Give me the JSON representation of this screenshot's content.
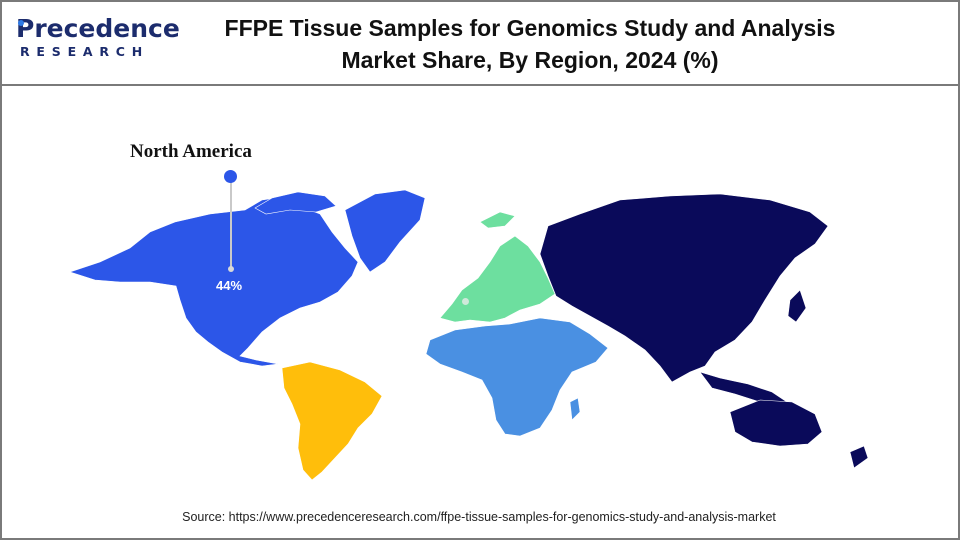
{
  "brand": {
    "name": "Precedence",
    "sub": "RESEARCH"
  },
  "title": {
    "line1": "FFPE Tissue Samples for Genomics Study and Analysis",
    "line2": "Market Share, By Region, 2024 (%)"
  },
  "map": {
    "highlight": {
      "region": "North America",
      "value_label": "44%",
      "value": 44
    },
    "regions": [
      {
        "key": "north-america",
        "color": "#2c56e8"
      },
      {
        "key": "south-america",
        "color": "#ffbe0b"
      },
      {
        "key": "europe",
        "color": "#6ddf9f"
      },
      {
        "key": "middle-east-africa",
        "color": "#4a90e2"
      },
      {
        "key": "asia-pacific",
        "color": "#0a0a5a"
      }
    ]
  },
  "source": "Source: https://www.precedenceresearch.com/ffpe-tissue-samples-for-genomics-study-and-analysis-market"
}
